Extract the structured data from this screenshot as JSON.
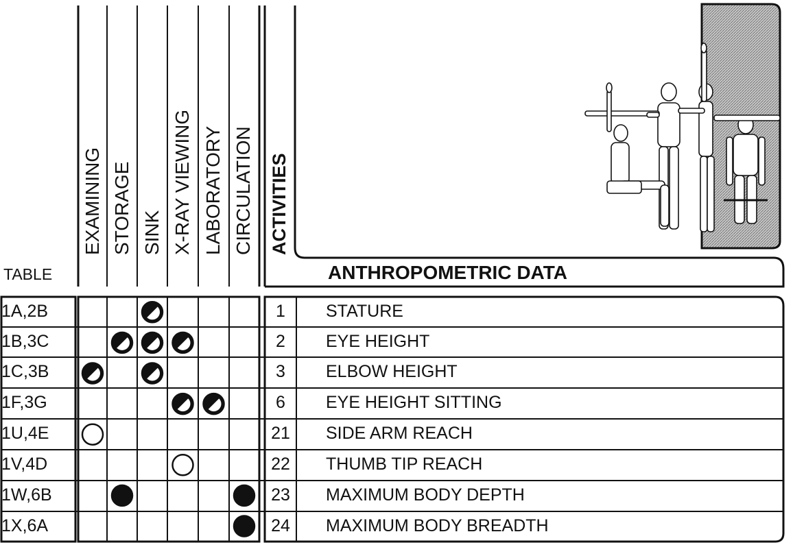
{
  "table_label": "TABLE",
  "columns": [
    "EXAMINING",
    "STORAGE",
    "SINK",
    "X-RAY VIEWING",
    "LABORATORY",
    "CIRCULATION"
  ],
  "activities_label": "ACTIVITIES",
  "data_header": "ANTHROPOMETRIC DATA",
  "rows": [
    {
      "table": "1A,2B",
      "num": "1",
      "measure": "STATURE",
      "marks": [
        "",
        "",
        "half",
        "",
        "",
        ""
      ]
    },
    {
      "table": "1B,3C",
      "num": "2",
      "measure": "EYE HEIGHT",
      "marks": [
        "",
        "half",
        "half",
        "half",
        "",
        ""
      ]
    },
    {
      "table": "1C,3B",
      "num": "3",
      "measure": "ELBOW HEIGHT",
      "marks": [
        "half",
        "",
        "half",
        "",
        "",
        ""
      ]
    },
    {
      "table": "1F,3G",
      "num": "6",
      "measure": "EYE HEIGHT SITTING",
      "marks": [
        "",
        "",
        "",
        "half",
        "half",
        ""
      ]
    },
    {
      "table": "1U,4E",
      "num": "21",
      "measure": "SIDE ARM REACH",
      "marks": [
        "empty",
        "",
        "",
        "",
        "",
        ""
      ]
    },
    {
      "table": "1V,4D",
      "num": "22",
      "measure": "THUMB TIP REACH",
      "marks": [
        "",
        "",
        "",
        "empty",
        "",
        ""
      ]
    },
    {
      "table": "1W,6B",
      "num": "23",
      "measure": "MAXIMUM BODY DEPTH",
      "marks": [
        "",
        "full",
        "",
        "",
        "",
        "full"
      ]
    },
    {
      "table": "1X,6A",
      "num": "24",
      "measure": "MAXIMUM BODY BREADTH",
      "marks": [
        "",
        "",
        "",
        "",
        "",
        "full"
      ]
    }
  ],
  "colors": {
    "ink": "#111111",
    "paper": "#ffffff",
    "hatch": "#9a9a9a"
  },
  "icons": [
    "half-filled-circle-icon",
    "empty-circle-icon",
    "filled-circle-icon",
    "human-figures-illustration"
  ]
}
